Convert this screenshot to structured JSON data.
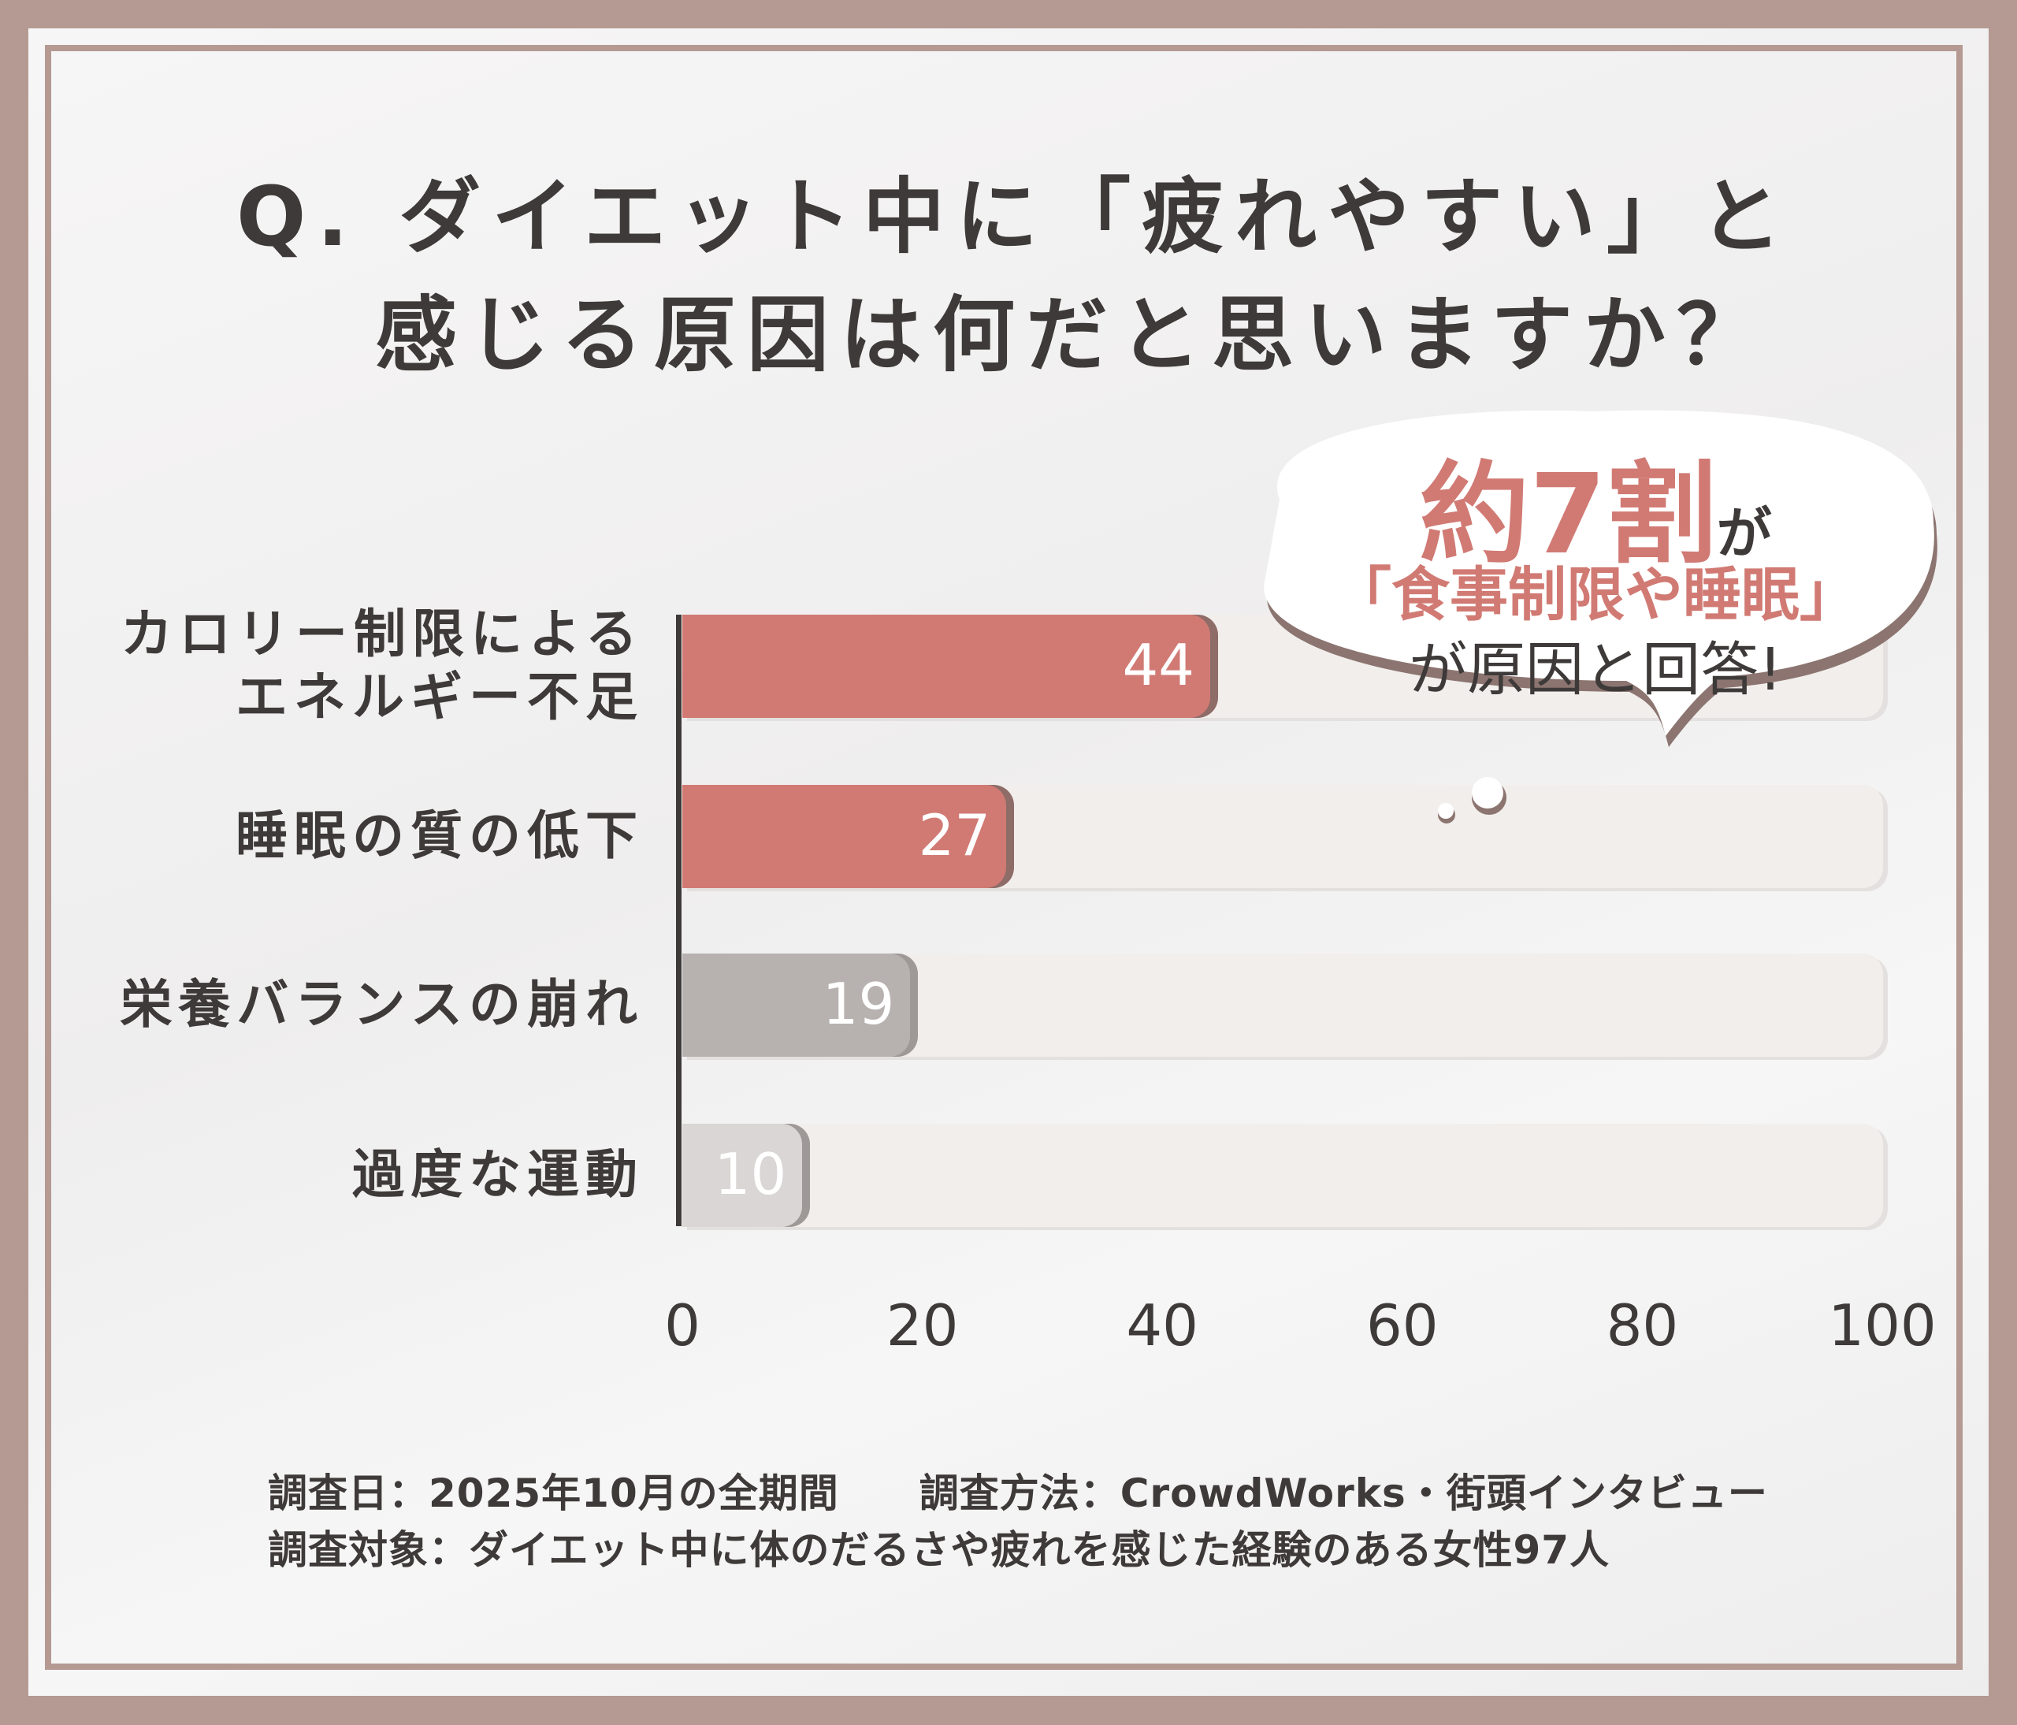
{
  "title": {
    "line1": "Q. ダイエット中に「疲れやすい」と",
    "line2": "感じる原因は何だと思いますか？"
  },
  "callout": {
    "highlight": "約7割",
    "suffix": "が",
    "line2": "「食事制限や睡眠」",
    "line3": "が原因と回答!"
  },
  "chart_data": {
    "type": "bar",
    "orientation": "horizontal",
    "categories": [
      "カロリー制限による\nエネルギー不足",
      "睡眠の質の低下",
      "栄養バランスの崩れ",
      "過度な運動"
    ],
    "values": [
      44,
      27,
      19,
      10
    ],
    "xlim": [
      0,
      100
    ],
    "ticks": [
      "0",
      "20",
      "40",
      "60",
      "80",
      "100"
    ],
    "tick_values": [
      0,
      20,
      40,
      60,
      80,
      100
    ],
    "grid": false,
    "bar_colors": [
      "#d17a74",
      "#d17a74",
      "#b7b2b0",
      "#d9d6d5"
    ],
    "track_color": "#f2eeec"
  },
  "footer": {
    "line1": "調査日：2025年10月の全期間　　調査方法：CrowdWorks・街頭インタビュー",
    "line2": "調査対象：ダイエット中に体のだるさや疲れを感じた経験のある女性97人"
  },
  "colors": {
    "frame": "#b49a92",
    "accent": "#d17a74",
    "text": "#3e3a39"
  }
}
